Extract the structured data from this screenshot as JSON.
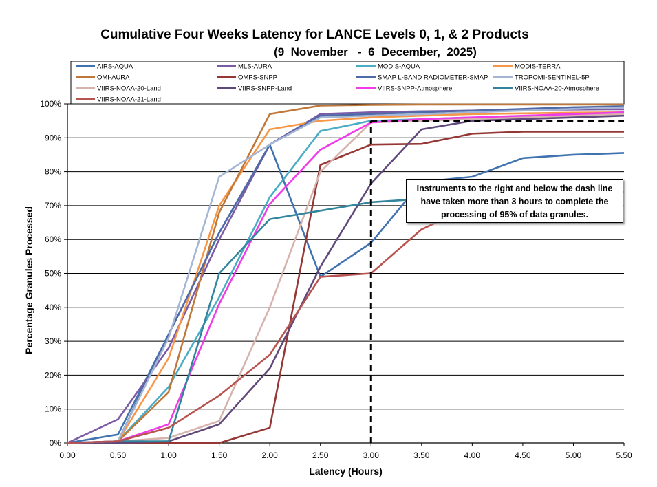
{
  "chart_data": {
    "type": "line",
    "title": "Cumulative Four Weeks Latency  for LANCE Levels 0, 1, & 2 Products",
    "subtitle": "(9  November   -  6  December,  2025)",
    "xlabel": "Latency (Hours)",
    "ylabel": "Percentage Granules Processed",
    "xlim": [
      0,
      5.5
    ],
    "ylim": [
      0,
      100
    ],
    "x_ticks": [
      "0.00",
      "0.50",
      "1.00",
      "1.50",
      "2.00",
      "2.50",
      "3.00",
      "3.50",
      "4.00",
      "4.50",
      "5.00",
      "5.50"
    ],
    "y_ticks": [
      "0%",
      "10%",
      "20%",
      "30%",
      "40%",
      "50%",
      "60%",
      "70%",
      "80%",
      "90%",
      "100%"
    ],
    "grid": "horizontal",
    "legend_position": "top",
    "threshold_line": {
      "x": 3.0,
      "y": 95
    },
    "annotation": "Instruments to the right and below the dash line have taken more than 3 hours to complete the processing of 95% of data granules.",
    "x": [
      0,
      0.5,
      1.0,
      1.5,
      2.0,
      2.5,
      3.0,
      3.5,
      4.0,
      4.5,
      5.0,
      5.5
    ],
    "series": [
      {
        "name": "AIRS-AQUA",
        "color": "#3f72af",
        "values": [
          0,
          2.5,
          32,
          62,
          88,
          49,
          59,
          77,
          78.5,
          84,
          85,
          85.5
        ]
      },
      {
        "name": "MLS-AURA",
        "color": "#7b5aa6",
        "values": [
          0,
          7,
          28,
          60,
          88,
          97,
          97.5,
          97.8,
          98,
          98.2,
          98.3,
          98.4
        ]
      },
      {
        "name": "MODIS-AQUA",
        "color": "#4bacc6",
        "values": [
          0,
          0.5,
          16.5,
          43,
          72.5,
          92,
          95,
          95.5,
          96,
          96.3,
          96.5,
          96.7
        ]
      },
      {
        "name": "MODIS-TERRA",
        "color": "#f79646",
        "values": [
          0,
          0.5,
          25,
          70,
          92.5,
          95,
          96,
          96.5,
          97,
          97.2,
          97.4,
          97.5
        ]
      },
      {
        "name": "OMI-AURA",
        "color": "#c0783a",
        "values": [
          0,
          0.5,
          15,
          68,
          97,
          99.5,
          99.7,
          99.8,
          99.8,
          99.8,
          99.8,
          99.8
        ]
      },
      {
        "name": "OMPS-SNPP",
        "color": "#953735",
        "values": [
          0,
          0,
          0,
          0,
          4.5,
          82,
          88,
          88.2,
          91.2,
          91.8,
          91.8,
          91.8
        ]
      },
      {
        "name": "SMAP L-BAND RADIOMETER-SMAP",
        "color": "#4f6aa8",
        "values": [
          0,
          0.5,
          32,
          62,
          88,
          96.5,
          97,
          97.5,
          98,
          98.5,
          99,
          99.3
        ]
      },
      {
        "name": "TROPOMI-SENTINEL-5P",
        "color": "#a5b6d4",
        "values": [
          0,
          0.5,
          31,
          78.5,
          88,
          96,
          96.5,
          97,
          97.5,
          98,
          98.5,
          99
        ]
      },
      {
        "name": "VIIRS-NOAA-20-Land",
        "color": "#d7b3ad",
        "values": [
          0,
          0.5,
          1.5,
          6.5,
          40,
          80,
          94.5,
          95,
          95.5,
          96,
          96.5,
          97
        ]
      },
      {
        "name": "VIIRS-SNPP-Land",
        "color": "#60497a",
        "values": [
          0,
          0,
          0.5,
          5.5,
          22,
          52,
          76.5,
          92.5,
          95,
          95.5,
          96,
          96.5
        ]
      },
      {
        "name": "VIIRS-SNPP-Atmosphere",
        "color": "#f03ce8",
        "values": [
          0,
          0.5,
          5.5,
          41,
          70.5,
          86.5,
          94.5,
          95.5,
          96,
          96.5,
          97,
          97.5
        ]
      },
      {
        "name": "VIIRS-NOAA-20-Atmosphere",
        "color": "#31859c",
        "values": [
          0,
          0.5,
          0.5,
          50,
          66,
          68.5,
          71,
          72,
          72.5,
          73,
          73.5,
          74
        ]
      },
      {
        "name": "VIIRS-NOAA-21-Land",
        "color": "#b85450",
        "values": [
          0,
          0.5,
          4.5,
          14,
          26,
          49,
          50,
          63,
          70,
          72,
          73,
          74
        ]
      }
    ]
  }
}
